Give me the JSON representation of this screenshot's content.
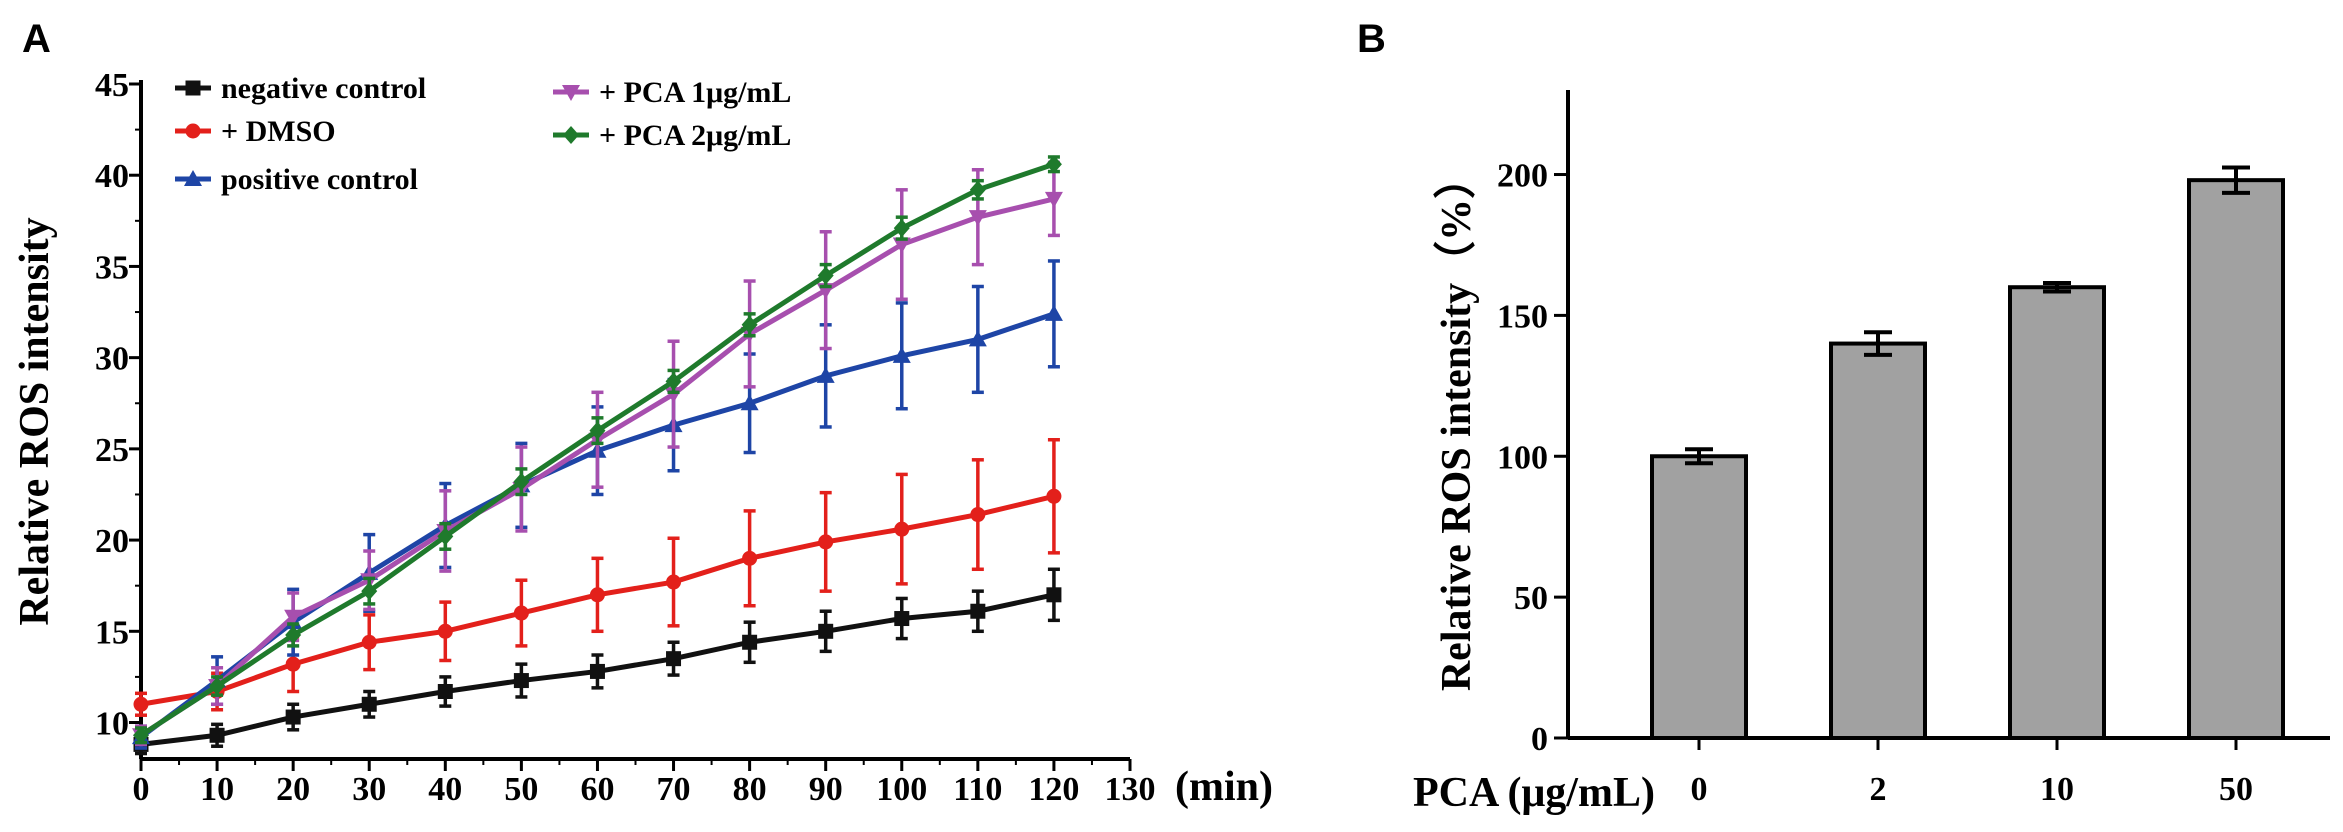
{
  "chart_data": [
    {
      "panel": "A",
      "type": "line",
      "title": "",
      "xlabel": "(min)",
      "ylabel": "Relative ROS intensity",
      "xlim": [
        0,
        130
      ],
      "ylim": [
        8,
        45
      ],
      "x_ticks": [
        0,
        10,
        20,
        30,
        40,
        50,
        60,
        70,
        80,
        90,
        100,
        110,
        120,
        130
      ],
      "y_ticks": [
        10,
        15,
        20,
        25,
        30,
        35,
        40,
        45
      ],
      "x": [
        0,
        10,
        20,
        30,
        40,
        50,
        60,
        70,
        80,
        90,
        100,
        110,
        120
      ],
      "series": [
        {
          "name": "negative control",
          "color": "#111111",
          "marker": "square",
          "values": [
            8.8,
            9.3,
            10.3,
            11.0,
            11.7,
            12.3,
            12.8,
            13.5,
            14.4,
            15.0,
            15.7,
            16.1,
            17.0
          ],
          "errors": [
            0.5,
            0.6,
            0.7,
            0.7,
            0.8,
            0.9,
            0.9,
            0.9,
            1.1,
            1.1,
            1.1,
            1.1,
            1.4
          ]
        },
        {
          "name": "+ DMSO",
          "color": "#e3201b",
          "marker": "circle",
          "values": [
            11.0,
            11.7,
            13.2,
            14.4,
            15.0,
            16.0,
            17.0,
            17.7,
            19.0,
            19.9,
            20.6,
            21.4,
            22.4
          ],
          "errors": [
            0.6,
            1.0,
            1.5,
            1.5,
            1.6,
            1.8,
            2.0,
            2.4,
            2.6,
            2.7,
            3.0,
            3.0,
            3.1
          ]
        },
        {
          "name": "positive control",
          "color": "#1e45a6",
          "marker": "triangle-up",
          "values": [
            9.2,
            12.3,
            15.5,
            18.2,
            20.8,
            23.0,
            24.9,
            26.3,
            27.5,
            29.0,
            30.1,
            31.0,
            32.4
          ],
          "errors": [
            0.6,
            1.3,
            1.8,
            2.1,
            2.3,
            2.3,
            2.4,
            2.5,
            2.7,
            2.8,
            2.9,
            2.9,
            2.9
          ]
        },
        {
          "name": "+ PCA 1μg/mL",
          "color": "#a74fae",
          "marker": "triangle-down",
          "values": [
            9.3,
            12.0,
            15.8,
            17.8,
            20.5,
            22.8,
            25.5,
            28.0,
            31.3,
            33.7,
            36.2,
            37.7,
            38.7
          ],
          "errors": [
            0.5,
            1.0,
            1.3,
            1.6,
            2.2,
            2.3,
            2.6,
            2.9,
            2.9,
            3.2,
            3.0,
            2.6,
            2.0
          ]
        },
        {
          "name": "+ PCA 2μg/mL",
          "color": "#1f7a2c",
          "marker": "diamond",
          "values": [
            9.3,
            12.0,
            14.8,
            17.2,
            20.2,
            23.2,
            26.0,
            28.7,
            31.8,
            34.5,
            37.1,
            39.2,
            40.6
          ],
          "errors": [
            0.4,
            0.5,
            0.6,
            0.7,
            0.7,
            0.7,
            0.7,
            0.6,
            0.6,
            0.6,
            0.6,
            0.5,
            0.4
          ]
        }
      ]
    },
    {
      "panel": "B",
      "type": "bar",
      "title": "",
      "xlabel": "PCA (μg/mL)",
      "ylabel": "Relative ROS intensity（%）",
      "categories": [
        "0",
        "2",
        "10",
        "50"
      ],
      "values": [
        100,
        140,
        160,
        198
      ],
      "errors": [
        2.5,
        4.0,
        1.5,
        4.5
      ],
      "ylim": [
        0,
        230
      ],
      "y_ticks": [
        0,
        50,
        100,
        150,
        200
      ],
      "bar_color": "#a1a1a1"
    }
  ]
}
